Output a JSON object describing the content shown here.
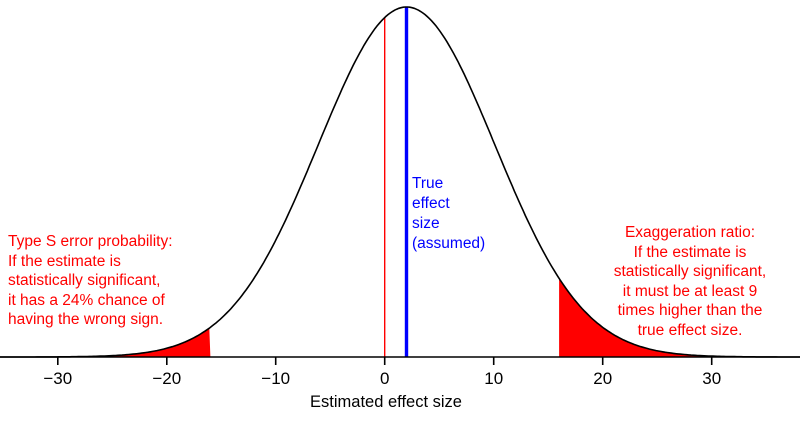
{
  "chart_data": {
    "type": "area",
    "curve": "normal-density",
    "title": "",
    "xlabel": "Estimated effect size",
    "mean": 2,
    "sd": 8.1,
    "xlim": [
      -35.3,
      38.1
    ],
    "x_ticks": [
      -30,
      -20,
      -10,
      0,
      10,
      20,
      30
    ],
    "x_tick_labels": [
      "−30",
      "−20",
      "−10",
      "0",
      "10",
      "20",
      "30"
    ],
    "zero_line_x": 0,
    "true_effect_x": 2,
    "shade_below": -16,
    "shade_above": 16,
    "type_s_probability_pct": 24,
    "exaggeration_ratio": 9,
    "grid": false,
    "colors": {
      "curve": "#000000",
      "axis": "#000000",
      "shade": "#ff0000",
      "zero_line": "#ff0000",
      "true_effect_line": "#0000ff",
      "red_text": "#ff0000",
      "blue_text": "#0000ff"
    }
  },
  "annotations": {
    "true_effect_label": "True\neffect\nsize\n(assumed)",
    "type_s_text": "Type S error probability:\nIf the estimate is\nstatistically significant,\nit has a 24% chance of\nhaving the wrong sign.",
    "exaggeration_text": "Exaggeration ratio:\nIf the estimate is\nstatistically significant,\nit must be at least 9\ntimes higher than the\ntrue effect size."
  }
}
